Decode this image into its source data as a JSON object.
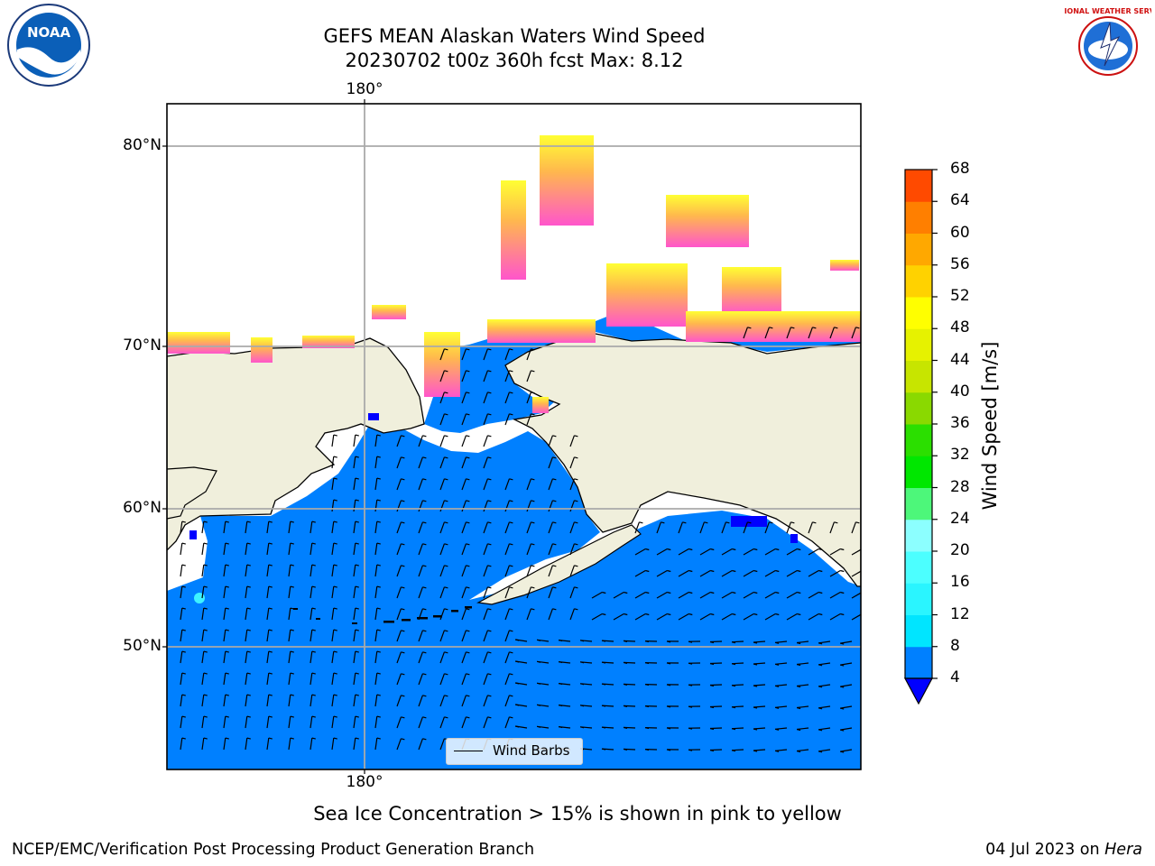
{
  "title_line1": "GEFS MEAN Alaskan Waters Wind Speed",
  "title_line2": "20230702 t00z 360h fcst   Max: 8.12",
  "map": {
    "lon_label_top": "180°",
    "lon_label_bottom": "180°",
    "lat_labels": [
      "80°N",
      "70°N",
      "60°N",
      "50°N"
    ],
    "ocean_color": "#0080ff",
    "land_color": "#f0efdc",
    "legend_label": "Wind Barbs"
  },
  "colorbar": {
    "label": "Wind Speed [m/s]",
    "ticks": [
      "4",
      "8",
      "12",
      "16",
      "20",
      "24",
      "28",
      "32",
      "36",
      "40",
      "44",
      "48",
      "52",
      "56",
      "60",
      "64",
      "68"
    ],
    "colors": [
      "#0080ff",
      "#00e5ff",
      "#2af5ff",
      "#4cffff",
      "#8cffff",
      "#4df77a",
      "#00e700",
      "#2bdf00",
      "#8ad900",
      "#c7e500",
      "#e6f200",
      "#ffff00",
      "#ffd200",
      "#ffa800",
      "#ff7f00",
      "#ff4a00",
      "#ff0000"
    ],
    "underflow_color": "#0000ff"
  },
  "footnote": "Sea Ice Concentration > 15% is shown in pink to yellow",
  "footer_left": "NCEP/EMC/Verification Post Processing Product Generation Branch",
  "footer_date": "04 Jul 2023 on",
  "footer_host": "Hera",
  "logos": {
    "left_text": "NOAA",
    "right_text": "NATIONAL WEATHER SERVICE"
  }
}
